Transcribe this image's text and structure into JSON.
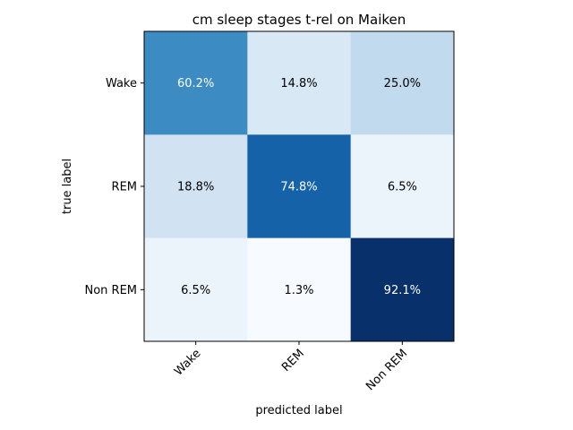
{
  "chart_data": {
    "type": "heatmap",
    "title": "cm sleep stages t-rel on Maiken",
    "xlabel": "predicted label",
    "ylabel": "true label",
    "x_categories": [
      "Wake",
      "REM",
      "Non REM"
    ],
    "y_categories": [
      "Wake",
      "REM",
      "Non REM"
    ],
    "values": [
      [
        60.2,
        14.8,
        25.0
      ],
      [
        18.8,
        74.8,
        6.5
      ],
      [
        6.5,
        1.3,
        92.1
      ]
    ],
    "cell_labels": [
      [
        "60.2%",
        "14.8%",
        "25.0%"
      ],
      [
        "18.8%",
        "74.8%",
        "6.5%"
      ],
      [
        "6.5%",
        "1.3%",
        "92.1%"
      ]
    ],
    "colormap": "Blues",
    "grid": false,
    "colors": {
      "low": "#f7fbff",
      "high": "#08306b",
      "text_dark": "#000000",
      "text_light": "#ffffff"
    }
  }
}
